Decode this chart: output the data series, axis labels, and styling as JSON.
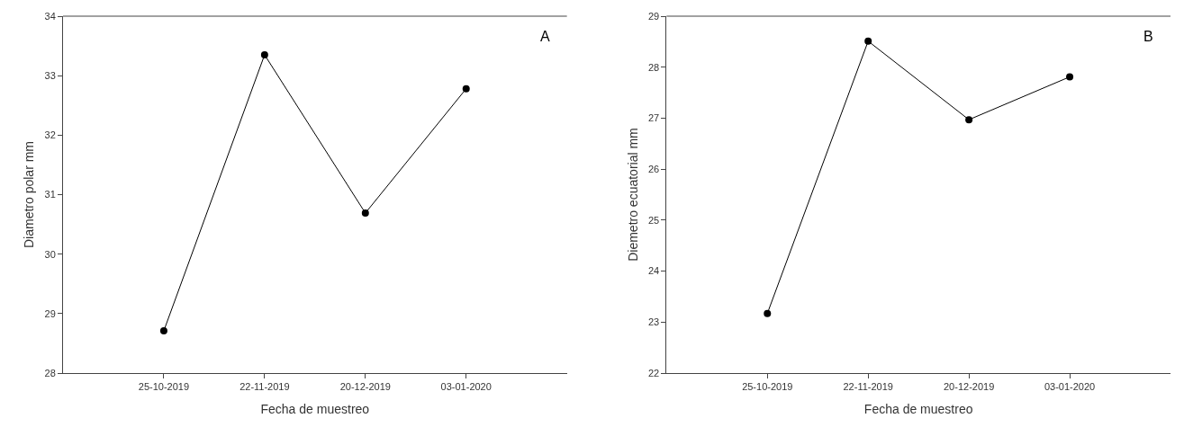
{
  "chart_data": [
    {
      "type": "line",
      "xlabel": "Fecha de muestreo",
      "ylabel": "Diametro polar mm",
      "annotations": [
        "A"
      ],
      "categories": [
        "25-10-2019",
        "22-11-2019",
        "20-12-2019",
        "03-01-2020"
      ],
      "series": [
        {
          "color": "#000000",
          "values": [
            28.71,
            33.35,
            30.69,
            32.78
          ]
        }
      ],
      "ylim": [
        28,
        34
      ],
      "yticks": [
        28,
        29,
        30,
        31,
        32,
        33,
        34
      ],
      "marker": "circle",
      "line_style": "solid"
    },
    {
      "type": "line",
      "xlabel": "Fecha de muestreo",
      "ylabel": "Diemetro ecuatorial mm",
      "annotations": [
        "B"
      ],
      "categories": [
        "25-10-2019",
        "22-11-2019",
        "20-12-2019",
        "03-01-2020"
      ],
      "series": [
        {
          "color": "#000000",
          "values": [
            23.17,
            28.51,
            26.97,
            27.81
          ]
        }
      ],
      "ylim": [
        22,
        29
      ],
      "yticks": [
        22,
        23,
        24,
        25,
        26,
        27,
        28,
        29
      ],
      "marker": "circle",
      "line_style": "solid"
    }
  ]
}
